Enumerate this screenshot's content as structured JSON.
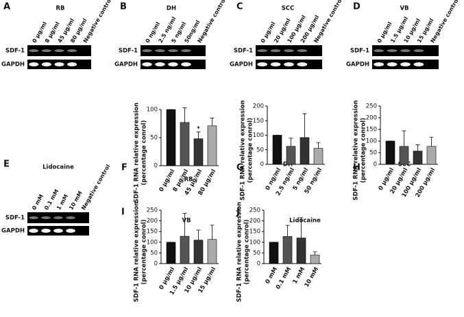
{
  "gels": [
    {
      "panel": "A",
      "title": "RB",
      "lanes": [
        "0 μg/ml",
        "8 μg/ml",
        "45 μg/ml",
        "80 μg/ml",
        "Negative control"
      ],
      "rows": [
        "SDF-1",
        "GAPDH"
      ]
    },
    {
      "panel": "B",
      "title": "DH",
      "lanes": [
        "0 ng/ml",
        "2.5 ng/ml",
        "5 ng/ml",
        "50ng/ml",
        "Negative control"
      ],
      "rows": [
        "SDF-1",
        "GAPDH"
      ]
    },
    {
      "panel": "C",
      "title": "SCC",
      "lanes": [
        "0 μg/ml",
        "20 μg/ml",
        "100 μg/ml",
        "200 μg/ml",
        "Negative control"
      ],
      "rows": [
        "SDF-1",
        "GAPDH"
      ]
    },
    {
      "panel": "D",
      "title": "VB",
      "lanes": [
        "0 μg/ml",
        "1.5 μg/ml",
        "10 μg/ml",
        "15 μg/ml",
        "Negative control"
      ],
      "rows": [
        "SDF-1",
        "GAPDH"
      ]
    },
    {
      "panel": "E",
      "title": "Lidocaine",
      "lanes": [
        "0 mM",
        "0.1 mM",
        "1 mM",
        "10 mM",
        "Negative control"
      ],
      "rows": [
        "SDF-1",
        "GAPDH"
      ]
    }
  ],
  "chart_data": [
    {
      "type": "bar",
      "panel": "F",
      "title": "RB",
      "ylabel": [
        "SDF-1 RNA relative expression",
        "(percentage conrol)"
      ],
      "categories": [
        "0 μg/ml",
        "8 μg/ml",
        "45 μg/ml",
        "80 μg/ml"
      ],
      "values": [
        100,
        77,
        48,
        71
      ],
      "errors": [
        0,
        26,
        12,
        14
      ],
      "colors": [
        "#111111",
        "#555555",
        "#333333",
        "#aaaaaa"
      ],
      "ylim": [
        0,
        100
      ],
      "yticks": [
        0,
        50,
        100
      ],
      "annotations": [
        {
          "text": "*",
          "x": "45 μg/ml"
        }
      ]
    },
    {
      "type": "bar",
      "panel": "G",
      "title": "DH",
      "ylabel": [
        "SDF-1 RNA relative expression",
        "(percentage conrol)"
      ],
      "categories": [
        "0 ng/ml",
        "2.5 ng/ml",
        "5 ng/ml",
        "50 ng/ml"
      ],
      "values": [
        100,
        62,
        92,
        55
      ],
      "errors": [
        0,
        28,
        82,
        20
      ],
      "colors": [
        "#111111",
        "#555555",
        "#333333",
        "#aaaaaa"
      ],
      "ylim": [
        0,
        200
      ],
      "yticks": [
        0,
        50,
        100,
        150,
        200
      ]
    },
    {
      "type": "bar",
      "panel": "H",
      "title": "SCC",
      "ylabel": [
        "SDF-1 RNA relative expression",
        "(percentage conrol)"
      ],
      "categories": [
        "0 μg/ml",
        "20 μg/ml",
        "100 μg/ml",
        "200 μg/ml"
      ],
      "values": [
        100,
        77,
        57,
        77
      ],
      "errors": [
        0,
        67,
        27,
        40
      ],
      "colors": [
        "#111111",
        "#555555",
        "#333333",
        "#aaaaaa"
      ],
      "ylim": [
        0,
        250
      ],
      "yticks": [
        0,
        50,
        100,
        150,
        200,
        250
      ]
    },
    {
      "type": "bar",
      "panel": "I",
      "title": "VB",
      "ylabel": [
        "SDF-1 RNA relative expression",
        "(percentage conrol)"
      ],
      "categories": [
        "0 μg/ml",
        "1.5 μg/ml",
        "10 μg/ml",
        "15 μg/ml"
      ],
      "values": [
        100,
        128,
        110,
        113
      ],
      "errors": [
        0,
        108,
        47,
        67
      ],
      "colors": [
        "#111111",
        "#555555",
        "#333333",
        "#aaaaaa"
      ],
      "ylim": [
        0,
        250
      ],
      "yticks": [
        0,
        50,
        100,
        150,
        200,
        250
      ]
    },
    {
      "type": "bar",
      "panel": "J",
      "title": "Lidocaine",
      "ylabel": [
        "SDF-1 RNA relative expression",
        "(percentage conrol)"
      ],
      "categories": [
        "0 mM",
        "0.1 mM",
        "1 mM",
        "10 mM"
      ],
      "values": [
        100,
        127,
        120,
        40
      ],
      "errors": [
        0,
        52,
        95,
        15
      ],
      "colors": [
        "#111111",
        "#555555",
        "#333333",
        "#aaaaaa"
      ],
      "ylim": [
        0,
        250
      ],
      "yticks": [
        0,
        50,
        100,
        150,
        200,
        250
      ]
    }
  ]
}
